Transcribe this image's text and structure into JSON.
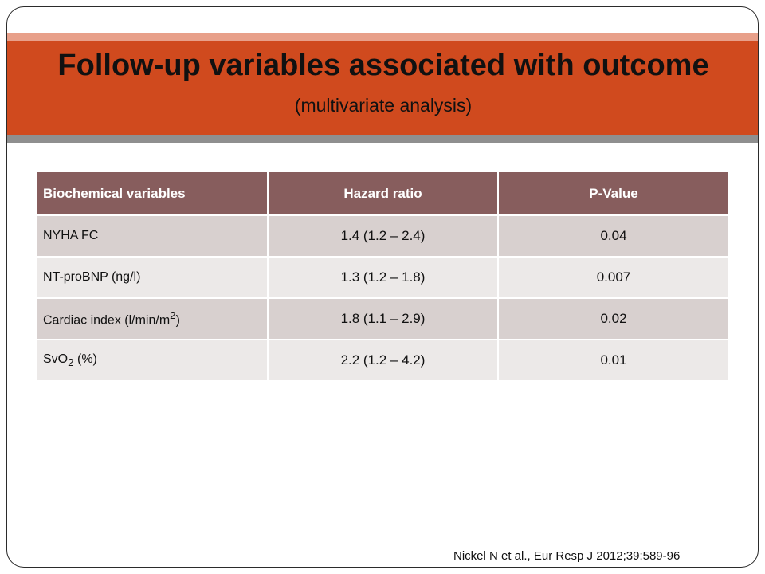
{
  "slide": {
    "title": "Follow-up variables associated with outcome",
    "subtitle": "(multivariate analysis)",
    "citation": "Nickel N et al., Eur Resp J 2012;39:589-96"
  },
  "table": {
    "headers": [
      "Biochemical variables",
      "Hazard ratio",
      "P-Value"
    ],
    "rows": [
      {
        "variable": "NYHA FC",
        "variable_sub": "",
        "variable_sup": "",
        "variable_tail": "",
        "hazard_ratio": "1.4 (1.2 – 2.4)",
        "p_value": "0.04"
      },
      {
        "variable": "NT-proBNP (ng/l)",
        "variable_sub": "",
        "variable_sup": "",
        "variable_tail": "",
        "hazard_ratio": "1.3 (1.2 – 1.8)",
        "p_value": "0.007"
      },
      {
        "variable": "Cardiac index (l/min/m",
        "variable_sub": "",
        "variable_sup": "2",
        "variable_tail": ")",
        "hazard_ratio": "1.8 (1.1 – 2.9)",
        "p_value": "0.02"
      },
      {
        "variable": "SvO",
        "variable_sub": "2",
        "variable_sup": "",
        "variable_tail": " (%)",
        "hazard_ratio": "2.2 (1.2 – 4.2)",
        "p_value": "0.01"
      }
    ]
  },
  "colors": {
    "title_band": "#d04a1e",
    "header_fill": "#875d5d",
    "row_odd": "#d8d0cf",
    "row_even": "#ece9e8"
  }
}
